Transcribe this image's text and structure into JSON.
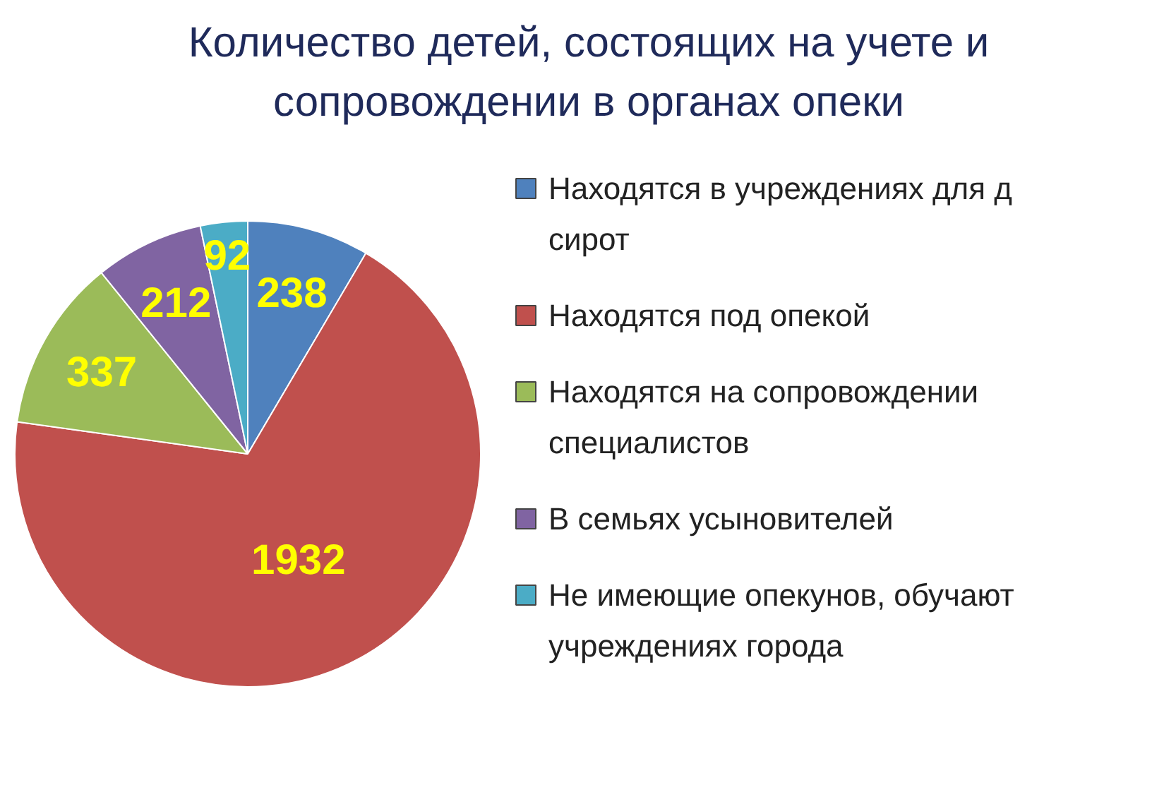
{
  "chart_data": {
    "type": "pie",
    "title": "Количество детей, состоящих на учете и сопровождении в органах опеки",
    "categories": [
      "Находятся в учреждениях для д сирот",
      "Находятся под опекой",
      "Находятся на сопровождении специалистов",
      "В семьях усыновителей",
      "Не имеющие опекунов, обучают учреждениях города"
    ],
    "values": [
      238,
      1932,
      337,
      212,
      92
    ],
    "colors": [
      "#4f81bd",
      "#c0504d",
      "#9bbb59",
      "#8064a2",
      "#4bacc6"
    ],
    "data_labels": true,
    "legend": "right"
  }
}
